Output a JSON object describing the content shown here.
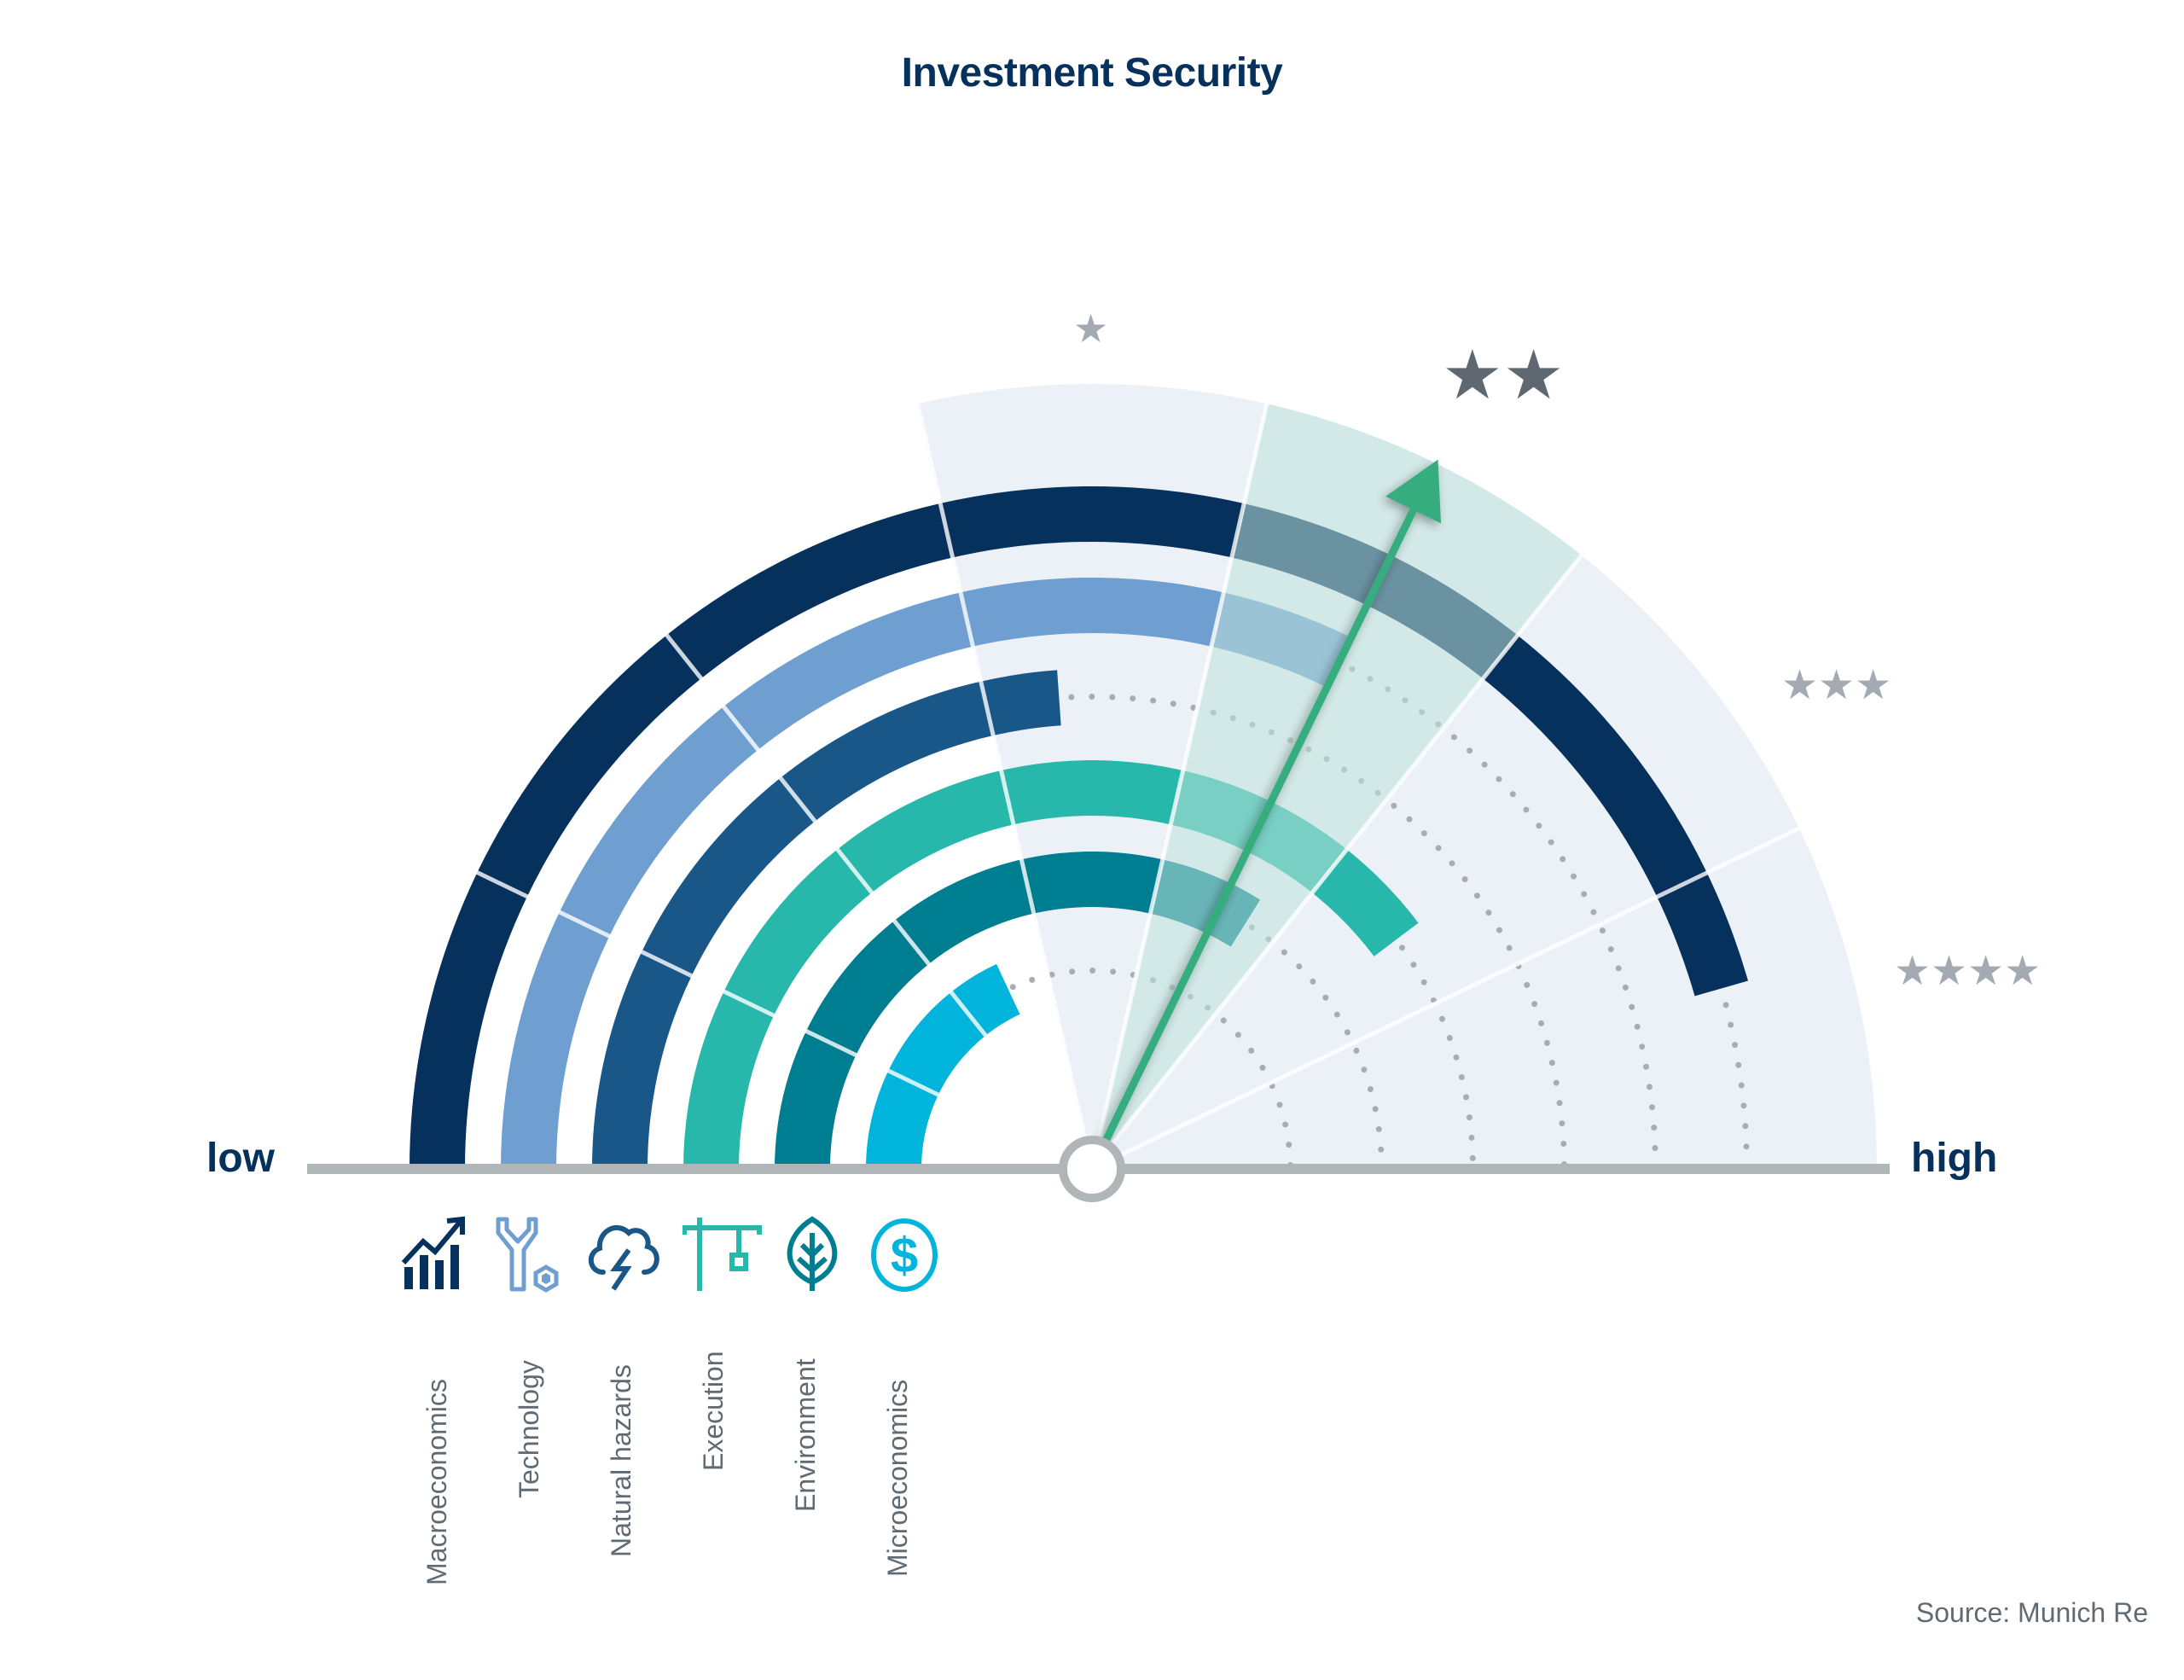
{
  "title": "Investment Security",
  "axis": {
    "low_label": "low",
    "high_label": "high"
  },
  "source": "Source: Munich Re",
  "rating_levels": [
    {
      "stars": "★",
      "count": 1,
      "active": false
    },
    {
      "stars": "★★",
      "count": 2,
      "active": true
    },
    {
      "stars": "★★★",
      "count": 3,
      "active": false
    },
    {
      "stars": "★★★★",
      "count": 4,
      "active": false
    }
  ],
  "categories": [
    {
      "label": "Macroeconomics",
      "icon": "rising-chart-icon",
      "color": "#06315c"
    },
    {
      "label": "Technology",
      "icon": "wrench-nut-icon",
      "color": "#6f9fd0"
    },
    {
      "label": "Natural hazards",
      "icon": "storm-cloud-icon",
      "color": "#1a5789"
    },
    {
      "label": "Execution",
      "icon": "crane-icon",
      "color": "#27b8ab"
    },
    {
      "label": "Environment",
      "icon": "leaf-icon",
      "color": "#007e91"
    },
    {
      "label": "Microeconomics",
      "icon": "dollar-coin-icon",
      "color": "#00b4dc"
    }
  ],
  "colors": {
    "fan_bg": "#ecf1f8",
    "highlight_sector": "#bee1d9",
    "needle": "#36ad7f",
    "baseline": "#b0b5b8",
    "dots": "#a9adb1"
  },
  "chart_data": {
    "type": "radial-gauge",
    "title": "Investment Security",
    "scale": {
      "min_label": "low",
      "max_label": "high",
      "segments": 7,
      "degrees_per_segment": 25.71
    },
    "rating_bands": [
      {
        "label": "1 star",
        "from_deg": 77.1,
        "to_deg": 102.9
      },
      {
        "label": "2 stars",
        "from_deg": 51.4,
        "to_deg": 77.1,
        "highlighted": true
      },
      {
        "label": "3 stars",
        "from_deg": 25.7,
        "to_deg": 51.4
      },
      {
        "label": "4 stars",
        "from_deg": 0,
        "to_deg": 25.7
      }
    ],
    "series": [
      {
        "name": "Macroeconomics",
        "end_angle_deg": 16,
        "score_fraction": 0.91
      },
      {
        "name": "Technology",
        "end_angle_deg": 64,
        "score_fraction": 0.64
      },
      {
        "name": "Natural hazards",
        "end_angle_deg": 94,
        "score_fraction": 0.48
      },
      {
        "name": "Execution",
        "end_angle_deg": 37,
        "score_fraction": 0.79
      },
      {
        "name": "Environment",
        "end_angle_deg": 58,
        "score_fraction": 0.68
      },
      {
        "name": "Microeconomics",
        "end_angle_deg": 115,
        "score_fraction": 0.36
      }
    ],
    "overall": {
      "needle_angle_deg": 64,
      "rating": "2 stars"
    }
  }
}
